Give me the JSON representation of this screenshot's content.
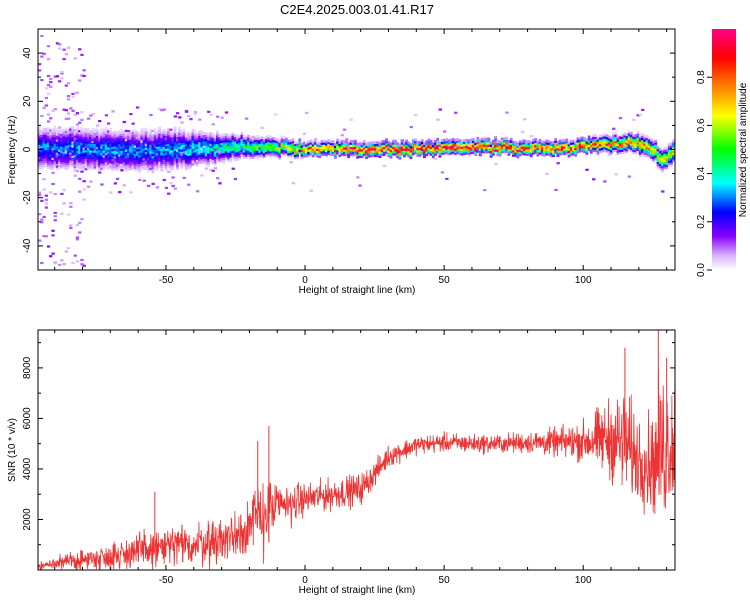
{
  "figure": {
    "title": "C2E4.2025.003.01.41.R17"
  },
  "chart_data": [
    {
      "type": "heatmap",
      "title": "C2E4.2025.003.01.41.R17",
      "xlabel": "Height of straight line (km)",
      "ylabel": "Frequency (Hz)",
      "xlim": [
        -96,
        133
      ],
      "ylim": [
        -50,
        50
      ],
      "x_ticks": [
        -50,
        0,
        50,
        100
      ],
      "y_ticks": [
        -40,
        -20,
        0,
        20,
        40
      ],
      "colorbar": {
        "label": "Normalized spectral amplitude",
        "range": [
          0.0,
          1.0
        ],
        "ticks": [
          0.0,
          0.2,
          0.4,
          0.6,
          0.8
        ],
        "tick_labels": [
          "0.0",
          "0.2",
          "0.4",
          "0.6",
          "0.8"
        ],
        "colors": [
          "#ffffff",
          "#d9b3ff",
          "#8800ff",
          "#0000ff",
          "#00ffff",
          "#00ff00",
          "#ffff00",
          "#ff8000",
          "#ff0000",
          "#ff0088"
        ]
      },
      "ridge_center_hz": [
        {
          "x": -96,
          "y": 0
        },
        {
          "x": -80,
          "y": 0
        },
        {
          "x": -60,
          "y": -1
        },
        {
          "x": -40,
          "y": 0
        },
        {
          "x": -20,
          "y": 1
        },
        {
          "x": 0,
          "y": 0
        },
        {
          "x": 20,
          "y": 0
        },
        {
          "x": 40,
          "y": 0
        },
        {
          "x": 60,
          "y": 1
        },
        {
          "x": 80,
          "y": 0
        },
        {
          "x": 100,
          "y": 1
        },
        {
          "x": 115,
          "y": 3
        },
        {
          "x": 125,
          "y": 0
        },
        {
          "x": 128,
          "y": -5
        },
        {
          "x": 133,
          "y": 0
        }
      ],
      "ridge_halfwidth_hz": [
        {
          "x": -96,
          "y": 6
        },
        {
          "x": -50,
          "y": 6
        },
        {
          "x": -20,
          "y": 3
        },
        {
          "x": 0,
          "y": 2
        },
        {
          "x": 100,
          "y": 2
        },
        {
          "x": 133,
          "y": 3
        }
      ],
      "peak_amplitude": [
        {
          "x": -96,
          "y": 0.3
        },
        {
          "x": -50,
          "y": 0.3
        },
        {
          "x": -20,
          "y": 0.45
        },
        {
          "x": 0,
          "y": 0.7
        },
        {
          "x": 20,
          "y": 0.9
        },
        {
          "x": 60,
          "y": 0.9
        },
        {
          "x": 100,
          "y": 0.85
        },
        {
          "x": 133,
          "y": 0.6
        }
      ]
    },
    {
      "type": "line",
      "xlabel": "Height of straight line (km)",
      "ylabel": "SNR (10 * v/v)",
      "xlim": [
        -96,
        133
      ],
      "ylim": [
        0,
        9500
      ],
      "x_ticks": [
        -50,
        0,
        50,
        100
      ],
      "y_ticks": [
        2000,
        4000,
        6000,
        8000
      ],
      "color": "#ee3333",
      "envelope": [
        {
          "x": -96,
          "mean": 150,
          "spread": 120
        },
        {
          "x": -90,
          "mean": 250,
          "spread": 200
        },
        {
          "x": -80,
          "mean": 400,
          "spread": 350
        },
        {
          "x": -70,
          "mean": 550,
          "spread": 450
        },
        {
          "x": -60,
          "mean": 750,
          "spread": 600
        },
        {
          "x": -50,
          "mean": 900,
          "spread": 700
        },
        {
          "x": -40,
          "mean": 1000,
          "spread": 700
        },
        {
          "x": -30,
          "mean": 1200,
          "spread": 800
        },
        {
          "x": -25,
          "mean": 1400,
          "spread": 900
        },
        {
          "x": -20,
          "mean": 1800,
          "spread": 1000
        },
        {
          "x": -15,
          "mean": 2200,
          "spread": 1300
        },
        {
          "x": -10,
          "mean": 2500,
          "spread": 800
        },
        {
          "x": 0,
          "mean": 2800,
          "spread": 500
        },
        {
          "x": 10,
          "mean": 3000,
          "spread": 500
        },
        {
          "x": 20,
          "mean": 3200,
          "spread": 500
        },
        {
          "x": 25,
          "mean": 3800,
          "spread": 400
        },
        {
          "x": 30,
          "mean": 4500,
          "spread": 350
        },
        {
          "x": 40,
          "mean": 4950,
          "spread": 300
        },
        {
          "x": 50,
          "mean": 5050,
          "spread": 300
        },
        {
          "x": 60,
          "mean": 5000,
          "spread": 300
        },
        {
          "x": 70,
          "mean": 5000,
          "spread": 300
        },
        {
          "x": 80,
          "mean": 5050,
          "spread": 350
        },
        {
          "x": 90,
          "mean": 5050,
          "spread": 450
        },
        {
          "x": 100,
          "mean": 5100,
          "spread": 650
        },
        {
          "x": 110,
          "mean": 5200,
          "spread": 1300
        },
        {
          "x": 115,
          "mean": 5000,
          "spread": 1700
        },
        {
          "x": 120,
          "mean": 4400,
          "spread": 1400
        },
        {
          "x": 125,
          "mean": 4200,
          "spread": 1600
        },
        {
          "x": 128,
          "mean": 4700,
          "spread": 2500
        },
        {
          "x": 133,
          "mean": 5200,
          "spread": 2000
        }
      ],
      "spikes": [
        {
          "x": -13,
          "y": 5700
        },
        {
          "x": -17,
          "y": 5100
        },
        {
          "x": -54,
          "y": 3100
        },
        {
          "x": 115,
          "y": 8800
        },
        {
          "x": 127,
          "y": 9500
        },
        {
          "x": 130,
          "y": 8400
        }
      ]
    }
  ]
}
